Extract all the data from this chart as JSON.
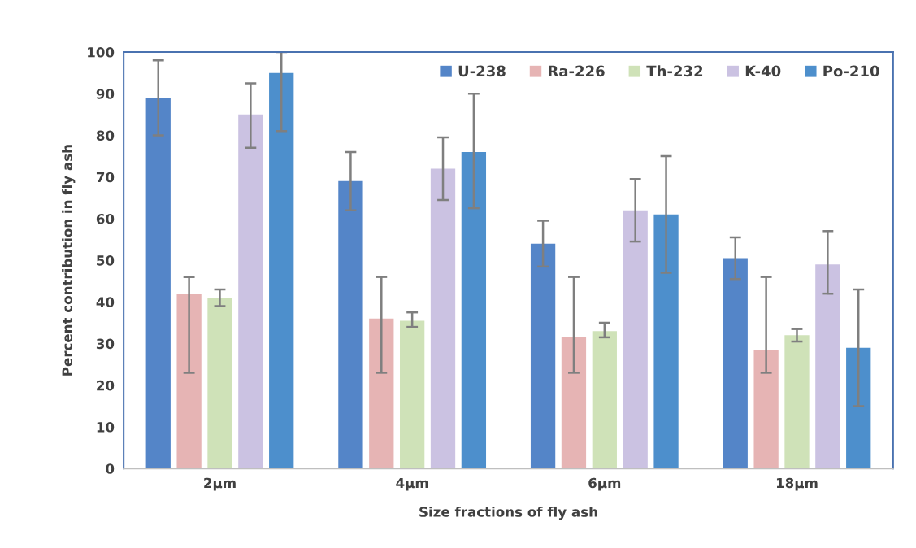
{
  "chart_data": {
    "type": "bar",
    "xlabel": "Size fractions of fly ash",
    "ylabel": "Percent contribution in fly ash",
    "categories": [
      "2µm",
      "4µm",
      "6µm",
      "18µm"
    ],
    "series": [
      {
        "name": "U-238",
        "color": "#5485c8",
        "values": [
          89,
          69,
          54,
          50.5
        ],
        "errors": [
          [
            80,
            98
          ],
          [
            62,
            76
          ],
          [
            48.5,
            59.5
          ],
          [
            45.5,
            55.5
          ]
        ]
      },
      {
        "name": "Ra-226",
        "color": "#e6b4b4",
        "values": [
          42,
          36,
          31.5,
          28.5
        ],
        "errors": [
          [
            23,
            46
          ],
          [
            23,
            46
          ],
          [
            23,
            46
          ],
          [
            23,
            46
          ]
        ]
      },
      {
        "name": "Th-232",
        "color": "#cfe2b8",
        "values": [
          41,
          35.5,
          33,
          32
        ],
        "errors": [
          [
            39,
            43
          ],
          [
            34,
            37.5
          ],
          [
            31.5,
            35
          ],
          [
            30.5,
            33.5
          ]
        ]
      },
      {
        "name": "K-40",
        "color": "#cbc2e2",
        "values": [
          85,
          72,
          62,
          49
        ],
        "errors": [
          [
            77,
            92.5
          ],
          [
            64.5,
            79.5
          ],
          [
            54.5,
            69.5
          ],
          [
            42,
            57
          ]
        ]
      },
      {
        "name": "Po-210",
        "color": "#4d8fcc",
        "values": [
          95,
          76,
          61,
          29
        ],
        "errors": [
          [
            81,
            100
          ],
          [
            62.5,
            90
          ],
          [
            47,
            75
          ],
          [
            15,
            43
          ]
        ]
      }
    ],
    "ylim": [
      0,
      100
    ],
    "yticks": [
      0,
      10,
      20,
      30,
      40,
      50,
      60,
      70,
      80,
      90,
      100
    ],
    "grid": false,
    "legend": "top right"
  }
}
